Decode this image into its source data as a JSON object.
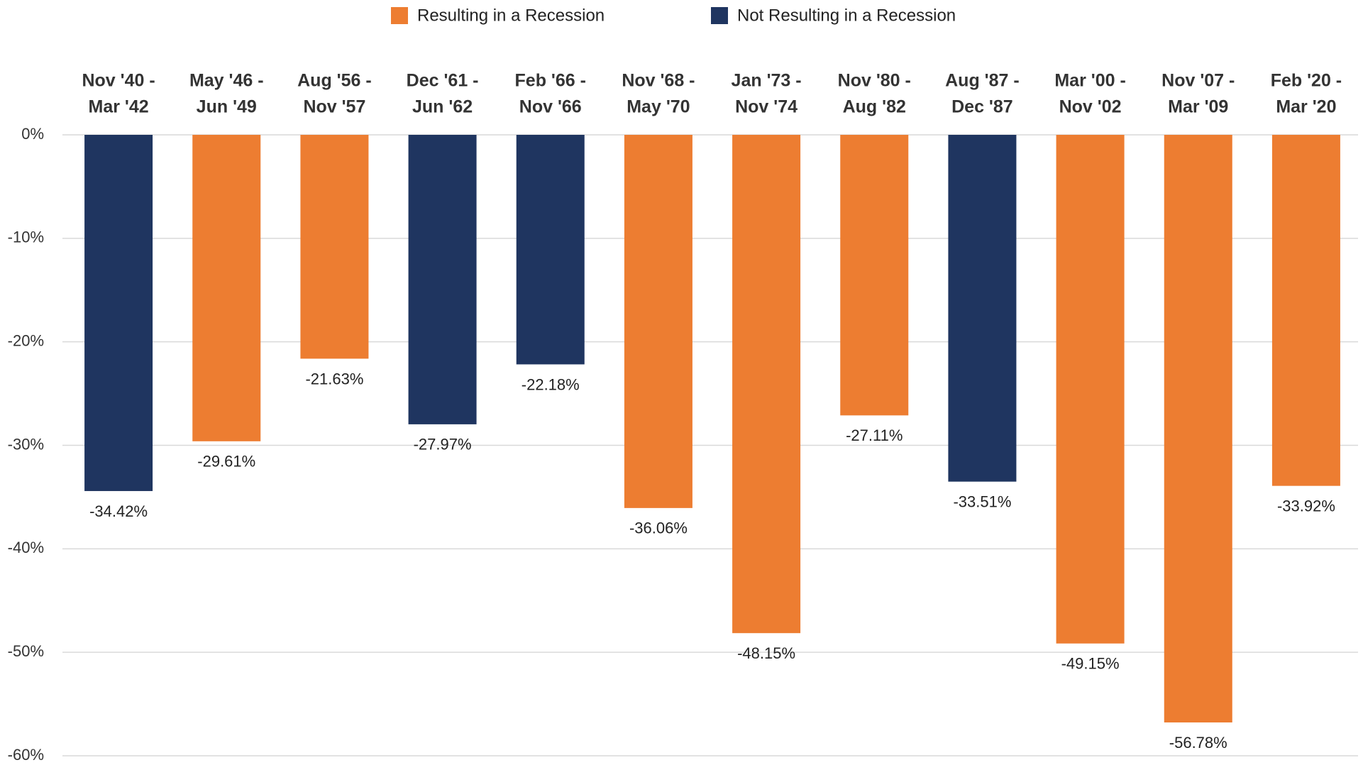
{
  "chart_data": {
    "type": "bar",
    "categories": [
      [
        "Nov '40 -",
        "Mar '42"
      ],
      [
        "May '46 -",
        "Jun '49"
      ],
      [
        "Aug '56 -",
        "Nov '57"
      ],
      [
        "Dec '61 -",
        "Jun '62"
      ],
      [
        "Feb '66 -",
        "Nov '66"
      ],
      [
        "Nov '68 -",
        "May '70"
      ],
      [
        "Jan '73 -",
        "Nov '74"
      ],
      [
        "Nov '80 -",
        "Aug '82"
      ],
      [
        "Aug '87 -",
        "Dec '87"
      ],
      [
        "Mar '00 -",
        "Nov '02"
      ],
      [
        "Nov '07 -",
        "Mar '09"
      ],
      [
        "Feb '20 -",
        "Mar '20"
      ]
    ],
    "series": [
      {
        "name": "Resulting in a Recession",
        "color": "#ed7d31",
        "values": [
          null,
          -29.61,
          -21.63,
          null,
          null,
          -36.06,
          -48.15,
          -27.11,
          null,
          -49.15,
          -56.78,
          -33.92
        ],
        "value_labels": [
          null,
          "-29.61%",
          "-21.63%",
          null,
          null,
          "-36.06%",
          "-48.15%",
          "-27.11%",
          null,
          "-49.15%",
          "-56.78%",
          "-33.92%"
        ]
      },
      {
        "name": "Not Resulting in a Recession",
        "color": "#1f3560",
        "values": [
          -34.42,
          null,
          null,
          -27.97,
          -22.18,
          null,
          null,
          null,
          -33.51,
          null,
          null,
          null
        ],
        "value_labels": [
          "-34.42%",
          null,
          null,
          "-27.97%",
          "-22.18%",
          null,
          null,
          null,
          "-33.51%",
          null,
          null,
          null
        ]
      }
    ],
    "ylim": [
      -60,
      0
    ],
    "yticks": [
      {
        "value": 0,
        "label": "0%"
      },
      {
        "value": -10,
        "label": "-10%"
      },
      {
        "value": -20,
        "label": "-20%"
      },
      {
        "value": -30,
        "label": "-30%"
      },
      {
        "value": -40,
        "label": "-40%"
      },
      {
        "value": -50,
        "label": "-50%"
      },
      {
        "value": -60,
        "label": "-60%"
      }
    ],
    "grid": true
  }
}
